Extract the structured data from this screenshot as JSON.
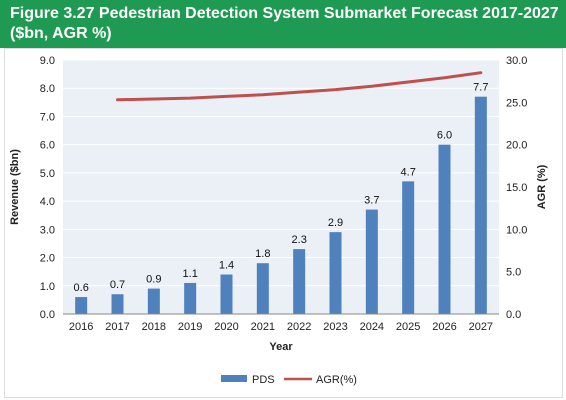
{
  "header": {
    "title": "Figure 3.27 Pedestrian Detection System Submarket Forecast 2017-2027 ($bn, AGR %)"
  },
  "colors": {
    "header_bg": "#1f9a52",
    "bar": "#4f81bd",
    "line": "#c0504d",
    "plot_bg": "#eaf0f6"
  },
  "chart_data": {
    "type": "bar",
    "title": "Figure 3.27 Pedestrian Detection System Submarket Forecast 2017-2027 ($bn, AGR %)",
    "xlabel": "Year",
    "ylabel": "Revenue ($bn)",
    "y2label": "AGR (%)",
    "categories": [
      "2016",
      "2017",
      "2018",
      "2019",
      "2020",
      "2021",
      "2022",
      "2023",
      "2024",
      "2025",
      "2026",
      "2027"
    ],
    "ylim": [
      0,
      9
    ],
    "y2lim": [
      0,
      30
    ],
    "yticks": [
      "0.0",
      "1.0",
      "2.0",
      "3.0",
      "4.0",
      "5.0",
      "6.0",
      "7.0",
      "8.0",
      "9.0"
    ],
    "y2ticks": [
      "0.0",
      "5.0",
      "10.0",
      "15.0",
      "20.0",
      "25.0",
      "30.0"
    ],
    "grid": true,
    "legend_position": "bottom",
    "series": [
      {
        "name": "PDS",
        "type": "bar",
        "axis": "left",
        "values": [
          0.6,
          0.7,
          0.9,
          1.1,
          1.4,
          1.8,
          2.3,
          2.9,
          3.7,
          4.7,
          6.0,
          7.7
        ],
        "labels": [
          "0.6",
          "0.7",
          "0.9",
          "1.1",
          "1.4",
          "1.8",
          "2.3",
          "2.9",
          "3.7",
          "4.7",
          "6.0",
          "7.7"
        ]
      },
      {
        "name": "AGR(%)",
        "type": "line",
        "axis": "right",
        "values": [
          null,
          25.3,
          25.4,
          25.5,
          25.7,
          25.9,
          26.2,
          26.5,
          26.9,
          27.4,
          27.9,
          28.5
        ]
      }
    ]
  }
}
